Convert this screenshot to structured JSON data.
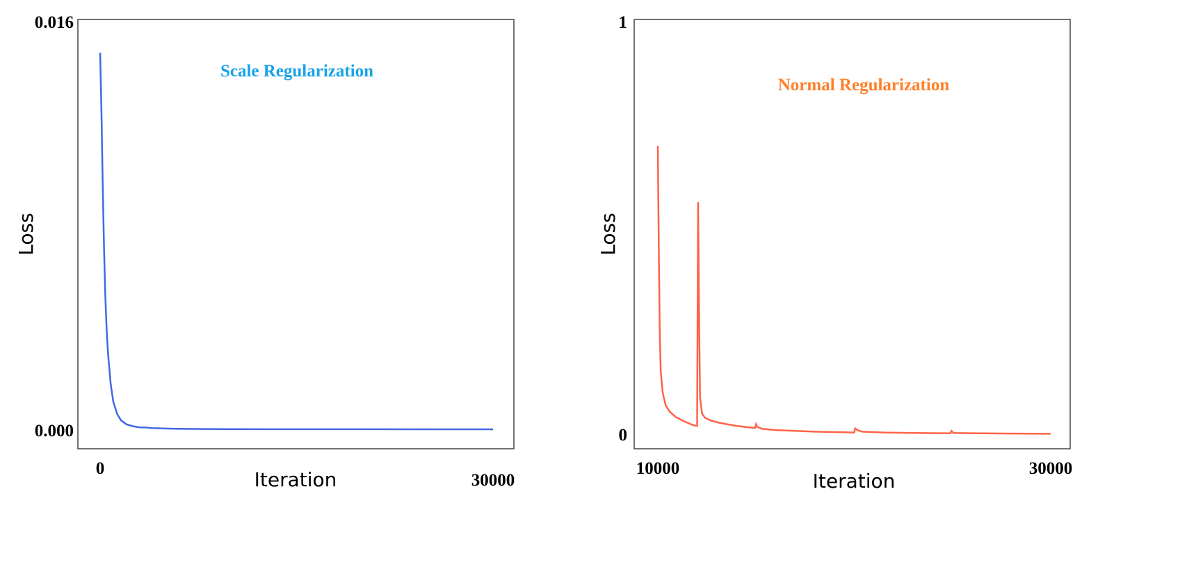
{
  "chart_data": [
    {
      "type": "line",
      "title": "Scale Regularization",
      "title_color": "#1aa3e8",
      "line_color": "#4169e1",
      "xlabel": "Iteration",
      "ylabel": "Loss",
      "xlim": [
        0,
        30000
      ],
      "ylim": [
        0,
        0.016
      ],
      "xticks": [
        "0",
        "30000"
      ],
      "yticks": [
        "0.000",
        "0.016"
      ],
      "grid": false,
      "series": [
        {
          "name": "Scale Regularization",
          "x": [
            0,
            100,
            200,
            300,
            400,
            500,
            600,
            800,
            1000,
            1300,
            1600,
            2000,
            2500,
            3000,
            3500,
            4000,
            5000,
            6000,
            8000,
            10000,
            15000,
            20000,
            25000,
            30000
          ],
          "y": [
            0.0148,
            0.0125,
            0.0095,
            0.007,
            0.0052,
            0.0039,
            0.003,
            0.0018,
            0.0011,
            0.0006,
            0.00035,
            0.0002,
            0.00012,
            8e-05,
            7e-05,
            5e-05,
            3e-05,
            2e-05,
            1e-05,
            5e-06,
            3e-06,
            2e-06,
            1e-06,
            1e-06
          ]
        }
      ]
    },
    {
      "type": "line",
      "title": "Normal Regularization",
      "title_color": "#ff7f2a",
      "line_color": "#ff6347",
      "xlabel": "Iteration",
      "ylabel": "Loss",
      "xlim": [
        10000,
        30000
      ],
      "ylim": [
        0,
        1
      ],
      "xticks": [
        "10000",
        "30000"
      ],
      "yticks": [
        "0",
        "1"
      ],
      "grid": false,
      "series": [
        {
          "name": "Normal Regularization",
          "x": [
            10000,
            10050,
            10100,
            10150,
            10250,
            10400,
            10600,
            10900,
            11300,
            11800,
            12000,
            12050,
            12100,
            12150,
            12250,
            12400,
            12700,
            13200,
            14000,
            14950,
            15000,
            15050,
            15300,
            16000,
            18000,
            20000,
            20050,
            20150,
            20400,
            21500,
            23000,
            24900,
            24950,
            25050,
            26500,
            28000,
            30000
          ],
          "y": [
            0.7,
            0.45,
            0.25,
            0.15,
            0.1,
            0.07,
            0.055,
            0.042,
            0.032,
            0.022,
            0.02,
            0.563,
            0.3,
            0.09,
            0.05,
            0.04,
            0.033,
            0.027,
            0.02,
            0.015,
            0.024,
            0.018,
            0.013,
            0.01,
            0.006,
            0.004,
            0.014,
            0.01,
            0.006,
            0.004,
            0.003,
            0.002,
            0.008,
            0.003,
            0.002,
            0.0015,
            0.001
          ]
        }
      ]
    }
  ]
}
